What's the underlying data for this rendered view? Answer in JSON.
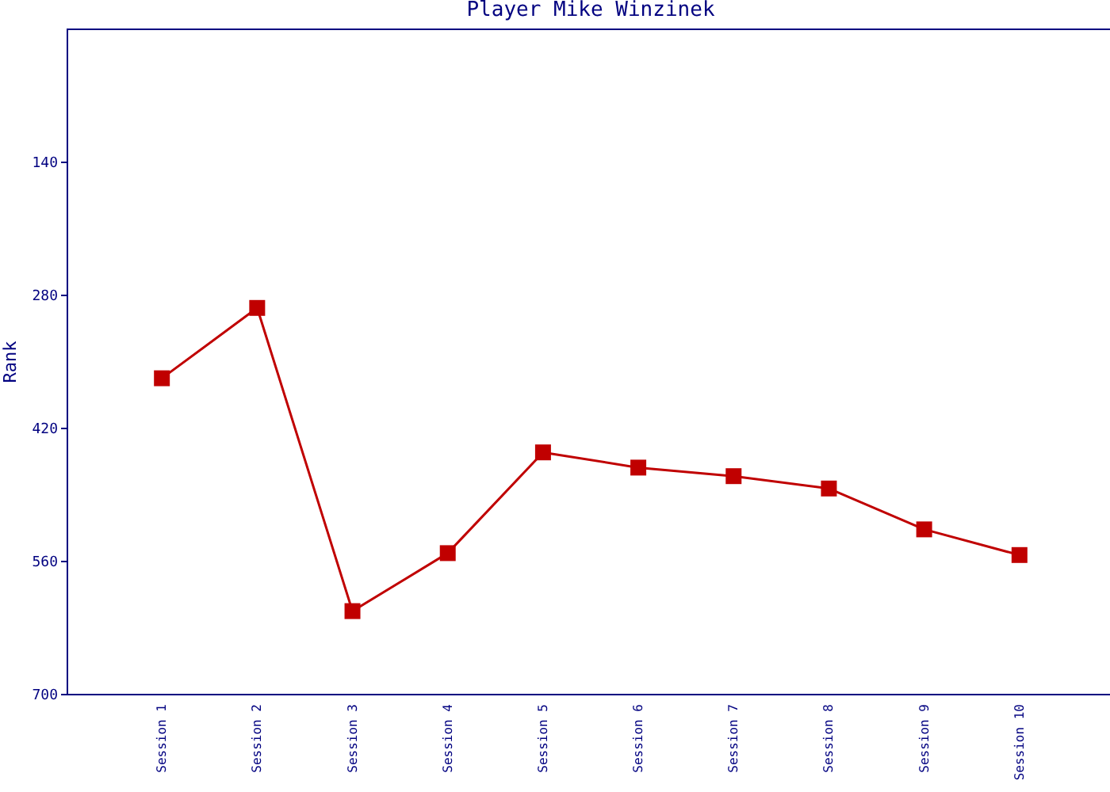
{
  "chart_data": {
    "type": "line",
    "title": "Player Mike Winzinek",
    "ylabel": "Rank",
    "categories": [
      "Session 1",
      "Session 2",
      "Session 3",
      "Session 4",
      "Session 5",
      "Session 6",
      "Session 7",
      "Session 8",
      "Session 9",
      "Session 10"
    ],
    "series": [
      {
        "color": "#c00000",
        "values": [
          368,
          294,
          613,
          552,
          446,
          462,
          471,
          484,
          527,
          554
        ]
      }
    ],
    "ylim": [
      700,
      0
    ],
    "yticks": [
      140,
      280,
      420,
      560,
      700
    ],
    "grid": false,
    "legend": false,
    "marker": "square",
    "line_style": "solid"
  }
}
